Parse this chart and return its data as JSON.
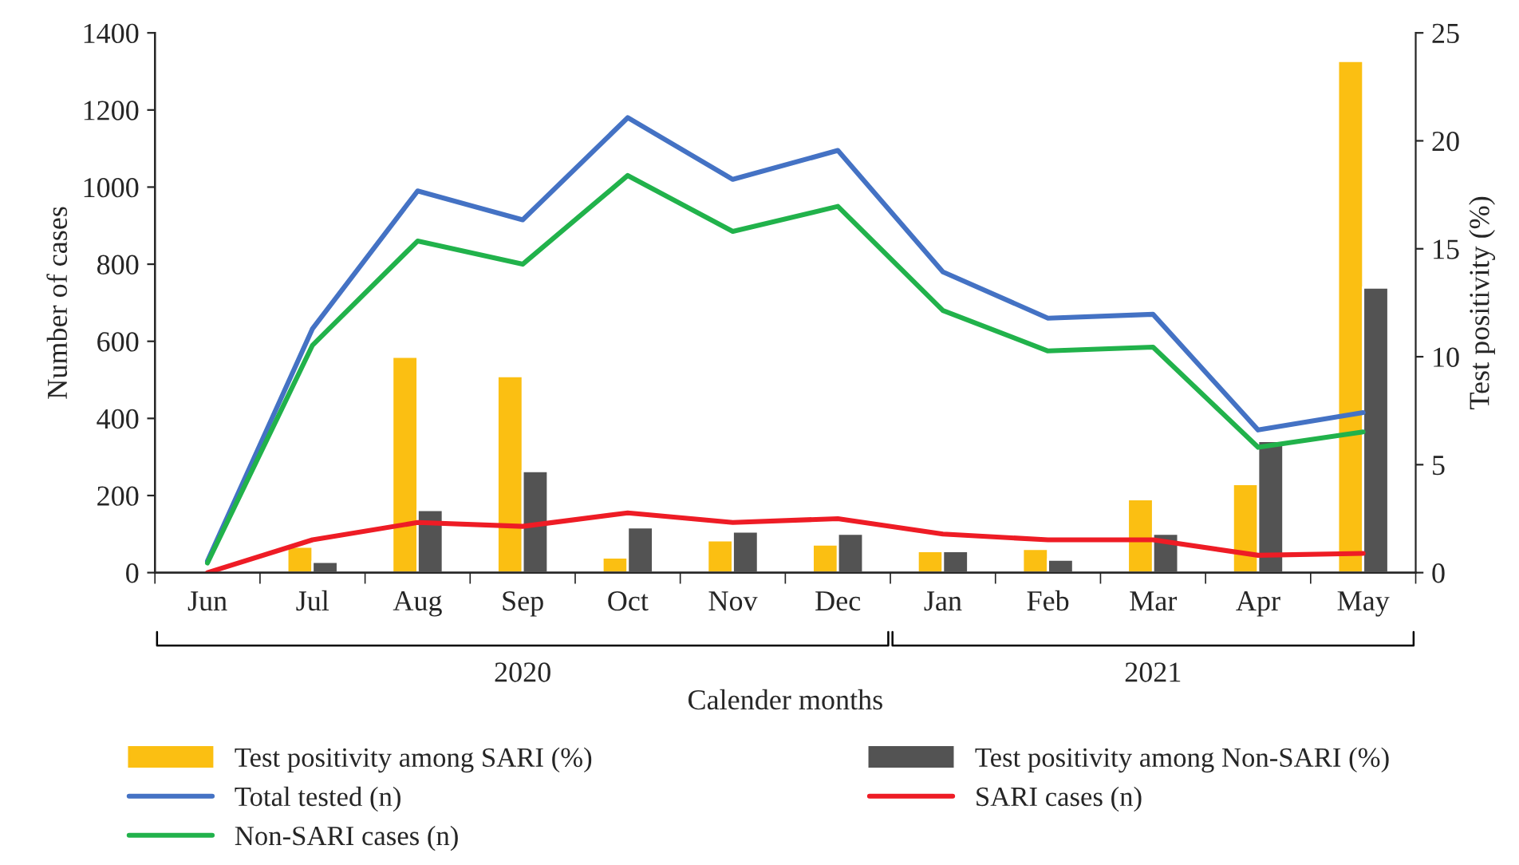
{
  "chart_data": {
    "type": "bar",
    "xlabel": "Calender months",
    "ylabel": "Number of cases",
    "y2label": "Test positivity (%)",
    "categories": [
      "Jun",
      "Jul",
      "Aug",
      "Sep",
      "Oct",
      "Nov",
      "Dec",
      "Jan",
      "Feb",
      "Mar",
      "Apr",
      "May"
    ],
    "series": [
      {
        "name": "Test positivity among SARI (%)",
        "axis": "y2",
        "color": "#fbbf12",
        "values": [
          null,
          1.2,
          10.0,
          9.1,
          0.7,
          1.5,
          1.3,
          1.0,
          1.1,
          3.4,
          4.1,
          23.7
        ]
      },
      {
        "name": "Test positivity among Non-SARI (%)",
        "axis": "y2",
        "color": "#535353",
        "values": [
          null,
          0.5,
          2.9,
          4.7,
          2.1,
          1.9,
          1.8,
          1.0,
          0.6,
          1.8,
          6.1,
          13.2
        ]
      },
      {
        "name": "Total tested (n)",
        "type": "line",
        "color": "#4472c4",
        "values": [
          30,
          633,
          990,
          915,
          1180,
          1020,
          1095,
          780,
          660,
          670,
          370,
          415
        ]
      },
      {
        "name": "SARI cases (n)",
        "type": "line",
        "color": "#ee1c25",
        "values": [
          0,
          85,
          130,
          120,
          155,
          130,
          140,
          100,
          85,
          85,
          45,
          50
        ]
      },
      {
        "name": "Non-SARI cases (n)",
        "type": "line",
        "color": "#21b24b",
        "values": [
          25,
          590,
          860,
          800,
          1030,
          885,
          950,
          680,
          575,
          585,
          325,
          365
        ]
      }
    ],
    "ylim": [
      0,
      1400
    ],
    "yticks": [
      0,
      200,
      400,
      600,
      800,
      1000,
      1200,
      1400
    ],
    "y2lim": [
      0,
      25
    ],
    "y2ticks": [
      0,
      5,
      10,
      15,
      20,
      25
    ],
    "annotations": [
      "2020",
      "2021"
    ],
    "legend": "bottom",
    "grid": false
  }
}
